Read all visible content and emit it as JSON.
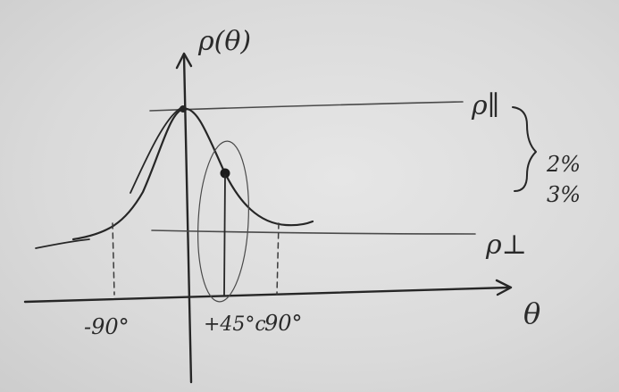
{
  "labels": {
    "y_axis": "ρ(θ)",
    "x_axis": "θ",
    "rho_parallel": "ρ∥",
    "rho_perp": "ρ⊥",
    "pct_upper": "2%",
    "pct_lower": "3%",
    "tick_neg90": "-90°",
    "tick_pos45": "+45°c",
    "tick_pos90": "90°"
  },
  "colors": {
    "ink": "#262626",
    "paper": "#dcdcdc"
  }
}
